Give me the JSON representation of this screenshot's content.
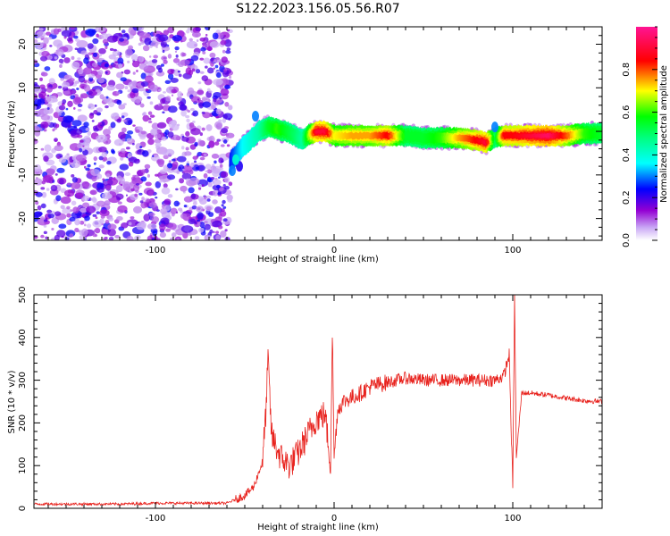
{
  "figure": {
    "title": "S122.2023.156.05.56.R07"
  },
  "chart_data": [
    {
      "type": "heatmap",
      "title": "",
      "xlabel": "Height of straight line (km)",
      "ylabel": "Frequency (Hz)",
      "xlim": [
        -168,
        150
      ],
      "ylim": [
        -25,
        24
      ],
      "xticks": [
        -100,
        0,
        100
      ],
      "yticks": [
        -20,
        -10,
        0,
        10,
        20
      ],
      "colorbar": {
        "label": "Normalized spectral amplitude",
        "range": [
          0,
          1
        ],
        "ticks": [
          0.0,
          0.2,
          0.4,
          0.6,
          0.8
        ],
        "colormap": [
          "#ffffff",
          "#9400d3",
          "#0000ff",
          "#00ffff",
          "#00ff00",
          "#ffff00",
          "#ff0000",
          "#ff1493"
        ]
      },
      "ridge": {
        "x": [
          -58,
          -52,
          -47,
          -42,
          -37,
          -32,
          -27,
          -22,
          -18,
          -15,
          -10,
          -5,
          0,
          10,
          20,
          30,
          40,
          50,
          60,
          70,
          80,
          85,
          90,
          95,
          100,
          110,
          120,
          130,
          140,
          150
        ],
        "y": [
          -7,
          -4,
          -2,
          0,
          1,
          0.5,
          0,
          -1,
          -2,
          -1,
          0,
          0,
          -1,
          -1,
          -1,
          -1,
          -1,
          -1.5,
          -1.5,
          -1.5,
          -2,
          -2.5,
          -1.5,
          -1,
          -1,
          -1,
          -1,
          -1,
          -0.5,
          -0.5
        ],
        "amplitude": [
          0.25,
          0.35,
          0.4,
          0.45,
          0.55,
          0.6,
          0.55,
          0.5,
          0.45,
          0.6,
          0.9,
          0.9,
          0.7,
          0.75,
          0.75,
          0.85,
          0.55,
          0.55,
          0.6,
          0.75,
          0.85,
          0.9,
          0.5,
          0.85,
          0.85,
          0.9,
          0.95,
          0.8,
          0.6,
          0.55
        ]
      },
      "noise_region_x": [
        -168,
        -62
      ],
      "noise_amplitude_range": [
        0.05,
        0.25
      ]
    },
    {
      "type": "line",
      "title": "",
      "xlabel": "Height of straight line (km)",
      "ylabel": "SNR (10 * v/v)",
      "xlim": [
        -168,
        150
      ],
      "ylim": [
        0,
        500
      ],
      "xticks": [
        -100,
        0,
        100
      ],
      "yticks": [
        0,
        100,
        200,
        300,
        400,
        500
      ],
      "color": "#e8231e",
      "series": [
        {
          "x": [
            -168,
            -150,
            -120,
            -100,
            -80,
            -60,
            -50,
            -45,
            -40,
            -38,
            -37,
            -35,
            -30,
            -25,
            -20,
            -15,
            -10,
            -5,
            -2,
            -1,
            0,
            2,
            5,
            10,
            15,
            20,
            25,
            30,
            35,
            40,
            50,
            60,
            70,
            80,
            90,
            95,
            98,
            100,
            101,
            102,
            105,
            110,
            120,
            130,
            140,
            150
          ],
          "y": [
            10,
            10,
            10,
            12,
            12,
            12,
            30,
            50,
            110,
            240,
            350,
            170,
            120,
            100,
            130,
            170,
            210,
            220,
            100,
            420,
            120,
            230,
            250,
            260,
            270,
            285,
            290,
            295,
            300,
            305,
            300,
            300,
            300,
            300,
            300,
            310,
            360,
            50,
            500,
            120,
            270,
            270,
            265,
            258,
            252,
            250
          ]
        }
      ]
    }
  ]
}
